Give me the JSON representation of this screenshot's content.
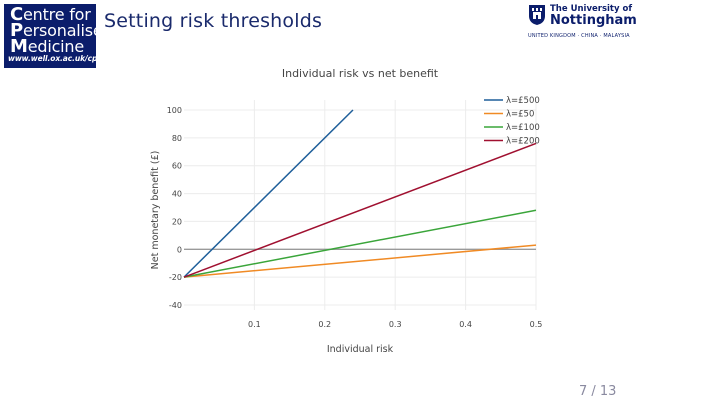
{
  "header": {
    "logo": {
      "line1_cap": "C",
      "line1_rest": "entre for",
      "line2_cap": "P",
      "line2_rest": "ersonalised",
      "line3_cap": "M",
      "line3_rest": "edicine",
      "url": "www.well.ox.ac.uk/cpm"
    },
    "slide_title": "Setting risk thresholds",
    "university": {
      "small": "The University of",
      "name": "Nottingham",
      "campuses": "UNITED KINGDOM · CHINA · MALAYSIA"
    }
  },
  "page_number": "7 / 13",
  "colors": {
    "navy": "#0b1d6b",
    "series_500": "#1f5f9a",
    "series_50": "#f08a24",
    "series_100": "#3aa53a",
    "series_200": "#a01030",
    "zero_line": "#9a9a9a",
    "grid": "#ececec"
  },
  "chart_data": {
    "type": "line",
    "title": "Individual risk vs net benefit",
    "xlabel": "Individual risk",
    "ylabel": "Net monetary benefit (£)",
    "xlim": [
      0,
      0.5
    ],
    "ylim": [
      -45,
      100
    ],
    "xticks": [
      0.1,
      0.2,
      0.3,
      0.4,
      0.5
    ],
    "yticks": [
      -40,
      -20,
      0,
      20,
      40,
      60,
      80,
      100
    ],
    "grid": true,
    "legend_position": "top-right",
    "series": [
      {
        "name": "λ=£500",
        "color": "#1f5f9a",
        "x": [
          0,
          0.24
        ],
        "y": [
          -20,
          100
        ]
      },
      {
        "name": "λ=£50",
        "color": "#f08a24",
        "x": [
          0,
          0.5
        ],
        "y": [
          -20,
          3
        ]
      },
      {
        "name": "λ=£100",
        "color": "#3aa53a",
        "x": [
          0,
          0.5
        ],
        "y": [
          -20,
          28
        ]
      },
      {
        "name": "λ=£200",
        "color": "#a01030",
        "x": [
          0,
          0.5
        ],
        "y": [
          -20,
          76
        ]
      }
    ]
  }
}
